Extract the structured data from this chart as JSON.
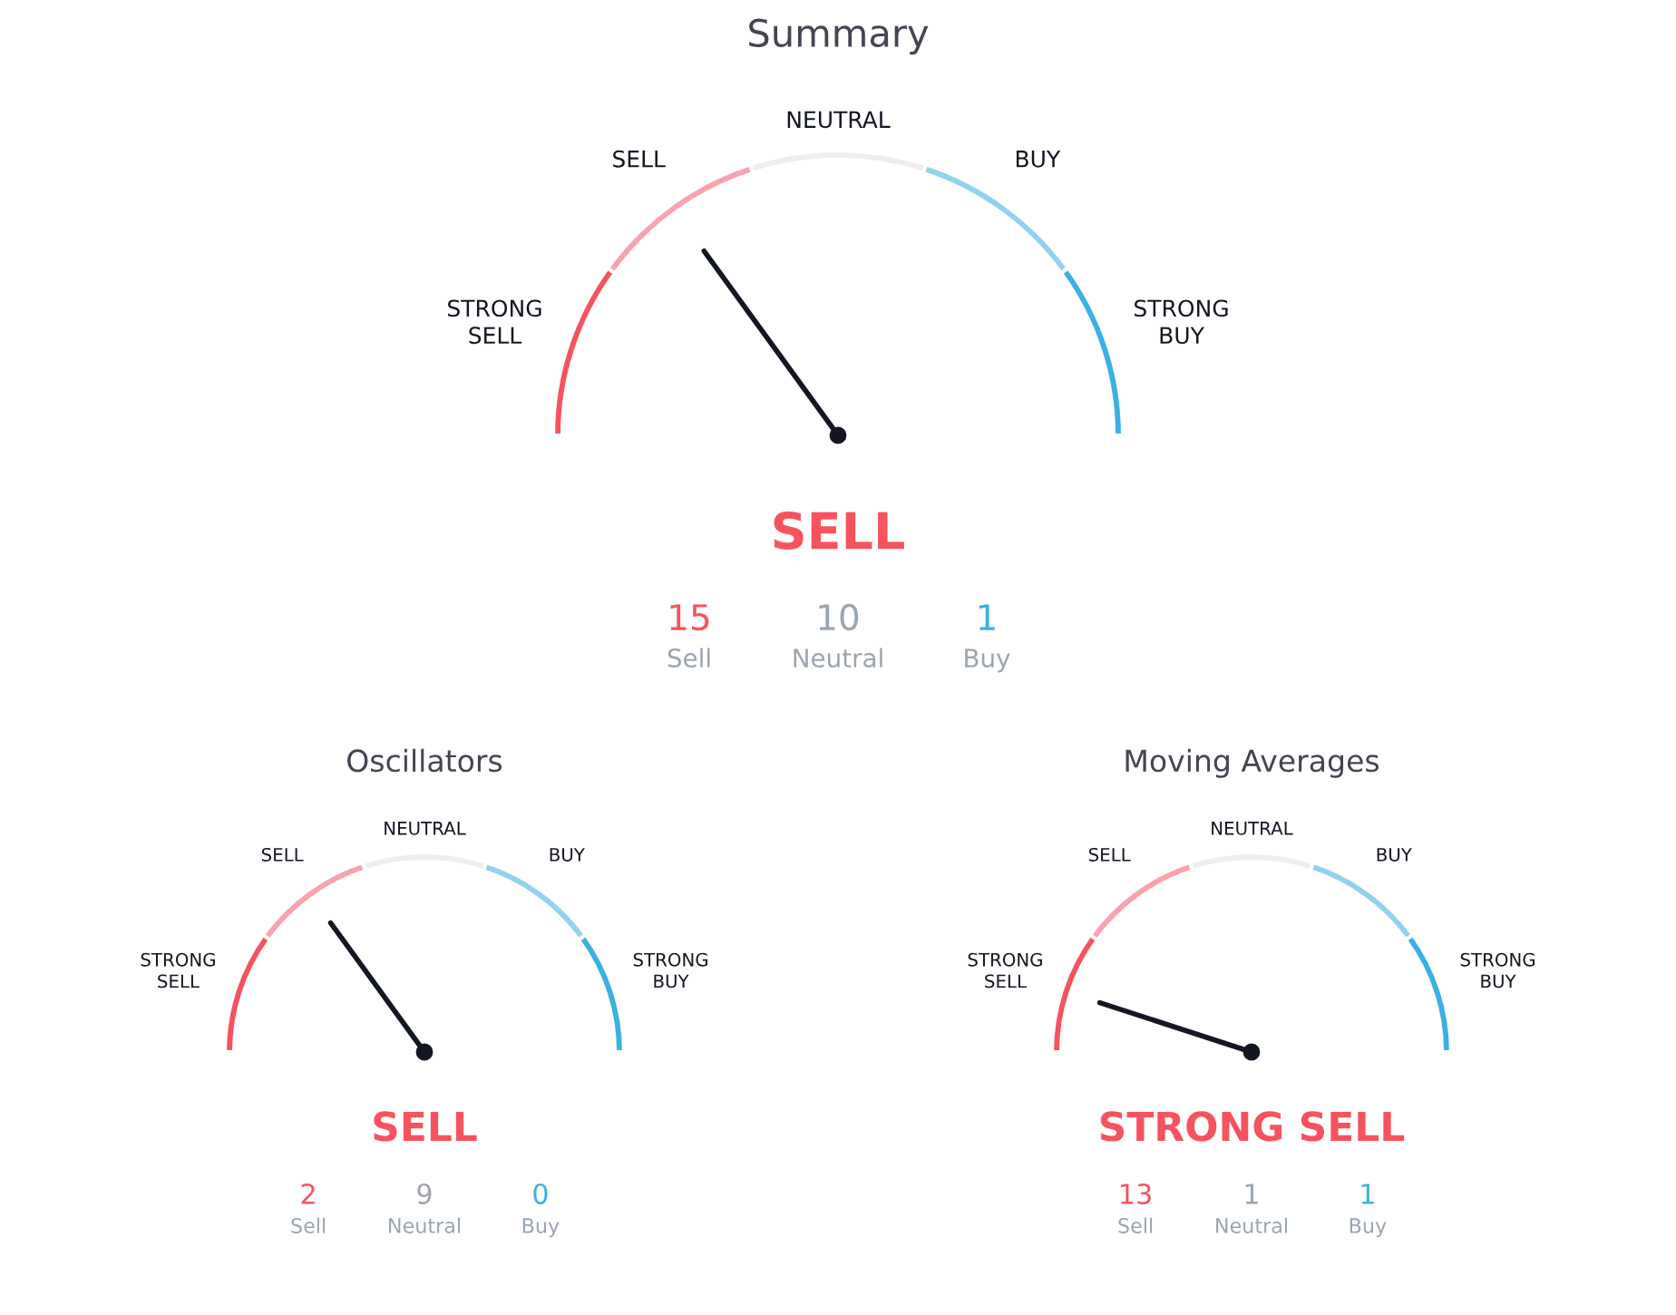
{
  "chart_data": [
    {
      "type": "donut",
      "title": "Summary",
      "categories": [
        "STRONG SELL",
        "SELL",
        "NEUTRAL",
        "BUY",
        "STRONG BUY"
      ],
      "values": [
        20,
        20,
        20,
        20,
        20
      ],
      "colors": [
        "#f7525f",
        "#f9a3ae",
        "#eeeeee",
        "#92d2ee",
        "#3bb0e2"
      ],
      "needle": "SELL",
      "annotations": [
        "SELL",
        "15",
        "Sell",
        "10",
        "Neutral",
        "1",
        "Buy"
      ]
    },
    {
      "type": "donut",
      "title": "Oscillators",
      "categories": [
        "STRONG SELL",
        "SELL",
        "NEUTRAL",
        "BUY",
        "STRONG BUY"
      ],
      "values": [
        20,
        20,
        20,
        20,
        20
      ],
      "colors": [
        "#f7525f",
        "#f9a3ae",
        "#eeeeee",
        "#92d2ee",
        "#3bb0e2"
      ],
      "needle": "SELL",
      "annotations": [
        "SELL",
        "2",
        "Sell",
        "9",
        "Neutral",
        "0",
        "Buy"
      ]
    },
    {
      "type": "donut",
      "title": "Moving Averages",
      "categories": [
        "STRONG SELL",
        "SELL",
        "NEUTRAL",
        "BUY",
        "STRONG BUY"
      ],
      "values": [
        20,
        20,
        20,
        20,
        20
      ],
      "colors": [
        "#f7525f",
        "#f9a3ae",
        "#eeeeee",
        "#92d2ee",
        "#3bb0e2"
      ],
      "needle": "STRONG SELL",
      "annotations": [
        "STRONG SELL",
        "13",
        "Sell",
        "1",
        "Neutral",
        "1",
        "Buy"
      ]
    }
  ]
}
